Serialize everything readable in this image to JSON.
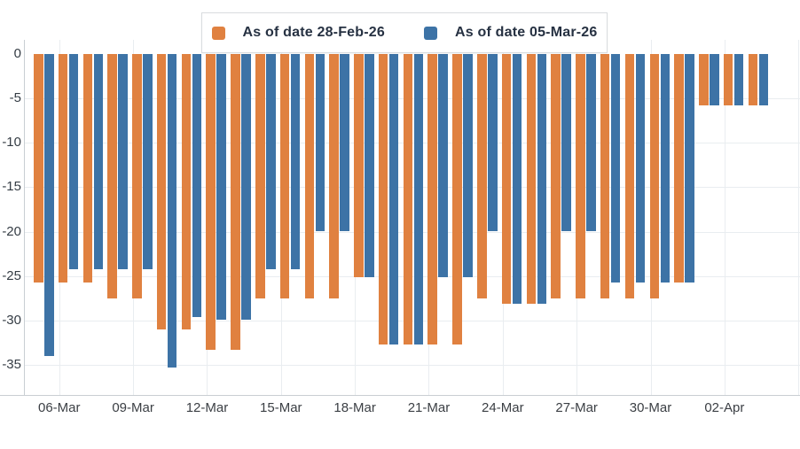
{
  "chart_data": {
    "type": "bar",
    "orientation": "vertical-negative",
    "title": "",
    "xlabel": "",
    "ylabel": "",
    "categories": [
      "05-Mar",
      "06-Mar",
      "07-Mar",
      "08-Mar",
      "09-Mar",
      "10-Mar",
      "11-Mar",
      "12-Mar",
      "13-Mar",
      "14-Mar",
      "15-Mar",
      "16-Mar",
      "17-Mar",
      "18-Mar",
      "19-Mar",
      "20-Mar",
      "21-Mar",
      "22-Mar",
      "23-Mar",
      "24-Mar",
      "25-Mar",
      "26-Mar",
      "27-Mar",
      "28-Mar",
      "29-Mar",
      "30-Mar",
      "31-Mar",
      "01-Apr",
      "02-Apr",
      "03-Apr"
    ],
    "series": [
      {
        "name": "As of date 28-Feb-26",
        "color": "#E08140",
        "values": [
          -25.7,
          -25.7,
          -25.7,
          -27.5,
          -27.5,
          -31,
          -31,
          -33.3,
          -33.3,
          -27.5,
          -27.5,
          -27.5,
          -27.5,
          -25.1,
          -32.7,
          -32.7,
          -32.7,
          -32.7,
          -27.5,
          -28.1,
          -28.1,
          -27.5,
          -27.5,
          -27.5,
          -27.5,
          -27.5,
          -25.7,
          -5.8,
          -5.8,
          -5.8
        ]
      },
      {
        "name": "As of date 05-Mar-26",
        "color": "#3D73A6",
        "values": [
          -34,
          -24.2,
          -24.2,
          -24.2,
          -24.2,
          -35.3,
          -29.6,
          -29.9,
          -29.9,
          -24.2,
          -24.2,
          -19.9,
          -19.9,
          -25.1,
          -32.7,
          -32.7,
          -25.1,
          -25.1,
          -19.9,
          -28.1,
          -28.1,
          -19.9,
          -19.9,
          -25.7,
          -25.7,
          -25.7,
          -25.7,
          -5.8,
          -5.8,
          -5.8
        ]
      }
    ],
    "ylim": [
      -38.5,
      0
    ],
    "yticks": [
      0,
      -5,
      -10,
      -15,
      -20,
      -25,
      -30,
      -35
    ],
    "xticks": [
      {
        "index": 1,
        "label": "06-Mar"
      },
      {
        "index": 4,
        "label": "09-Mar"
      },
      {
        "index": 7,
        "label": "12-Mar"
      },
      {
        "index": 10,
        "label": "15-Mar"
      },
      {
        "index": 13,
        "label": "18-Mar"
      },
      {
        "index": 16,
        "label": "21-Mar"
      },
      {
        "index": 19,
        "label": "24-Mar"
      },
      {
        "index": 22,
        "label": "27-Mar"
      },
      {
        "index": 25,
        "label": "30-Mar"
      },
      {
        "index": 28,
        "label": "02-Apr"
      },
      {
        "index": 31,
        "label": ""
      }
    ],
    "grid": true,
    "legend_position": "top-center"
  }
}
